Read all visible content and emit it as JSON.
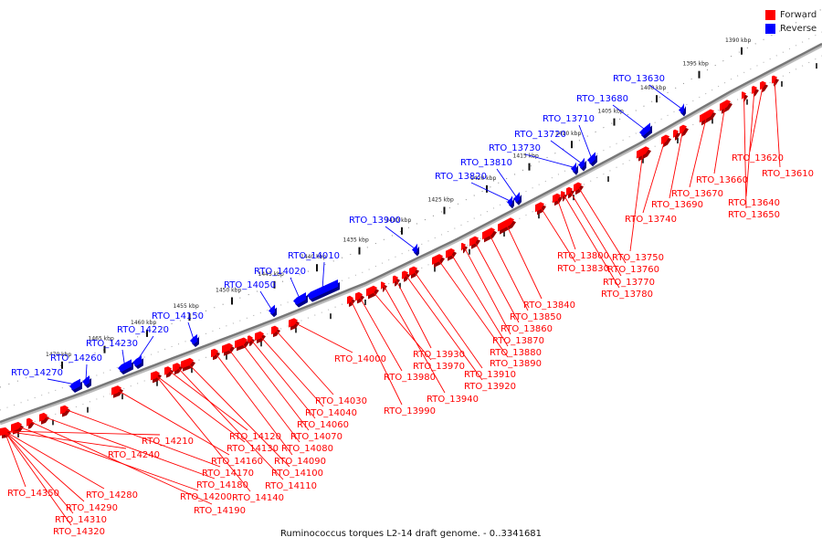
{
  "title": "Ruminococcus torques L2-14 draft genome. - 0..3341681",
  "legend": [
    {
      "label": "Forward",
      "color": "#ff0000"
    },
    {
      "label": "Reverse",
      "color": "#0000ff"
    }
  ],
  "colors": {
    "forward": "#ff0000",
    "reverse": "#0000ff",
    "backbone": "#777777"
  },
  "scale": {
    "unit": "kbp",
    "ticks": [
      1390,
      1395,
      1400,
      1405,
      1410,
      1415,
      1420,
      1425,
      1430,
      1435,
      1440,
      1445,
      1450,
      1455,
      1460,
      1465,
      1470
    ]
  },
  "forward_labels": [
    "RTO_13610",
    "RTO_13620",
    "RTO_13640",
    "RTO_13650",
    "RTO_13660",
    "RTO_13670",
    "RTO_13690",
    "RTO_13740",
    "RTO_13750",
    "RTO_13760",
    "RTO_13770",
    "RTO_13780",
    "RTO_13800",
    "RTO_13830",
    "RTO_13840",
    "RTO_13850",
    "RTO_13860",
    "RTO_13870",
    "RTO_13880",
    "RTO_13890",
    "RTO_13910",
    "RTO_13920",
    "RTO_13930",
    "RTO_13940",
    "RTO_13970",
    "RTO_13980",
    "RTO_13990",
    "RTO_14000",
    "RTO_14030",
    "RTO_14040",
    "RTO_14060",
    "RTO_14070",
    "RTO_14080",
    "RTO_14090",
    "RTO_14100",
    "RTO_14110",
    "RTO_14120",
    "RTO_14130",
    "RTO_14140",
    "RTO_14160",
    "RTO_14170",
    "RTO_14180",
    "RTO_14190",
    "RTO_14200",
    "RTO_14210",
    "RTO_14240",
    "RTO_14280",
    "RTO_14290",
    "RTO_14310",
    "RTO_14320",
    "RTO_14350"
  ],
  "reverse_labels": [
    "RTO_13630",
    "RTO_13680",
    "RTO_13710",
    "RTO_13720",
    "RTO_13730",
    "RTO_13810",
    "RTO_13820",
    "RTO_13900",
    "RTO_14010",
    "RTO_14020",
    "RTO_14050",
    "RTO_14150",
    "RTO_14220",
    "RTO_14230",
    "RTO_14260",
    "RTO_14270"
  ]
}
